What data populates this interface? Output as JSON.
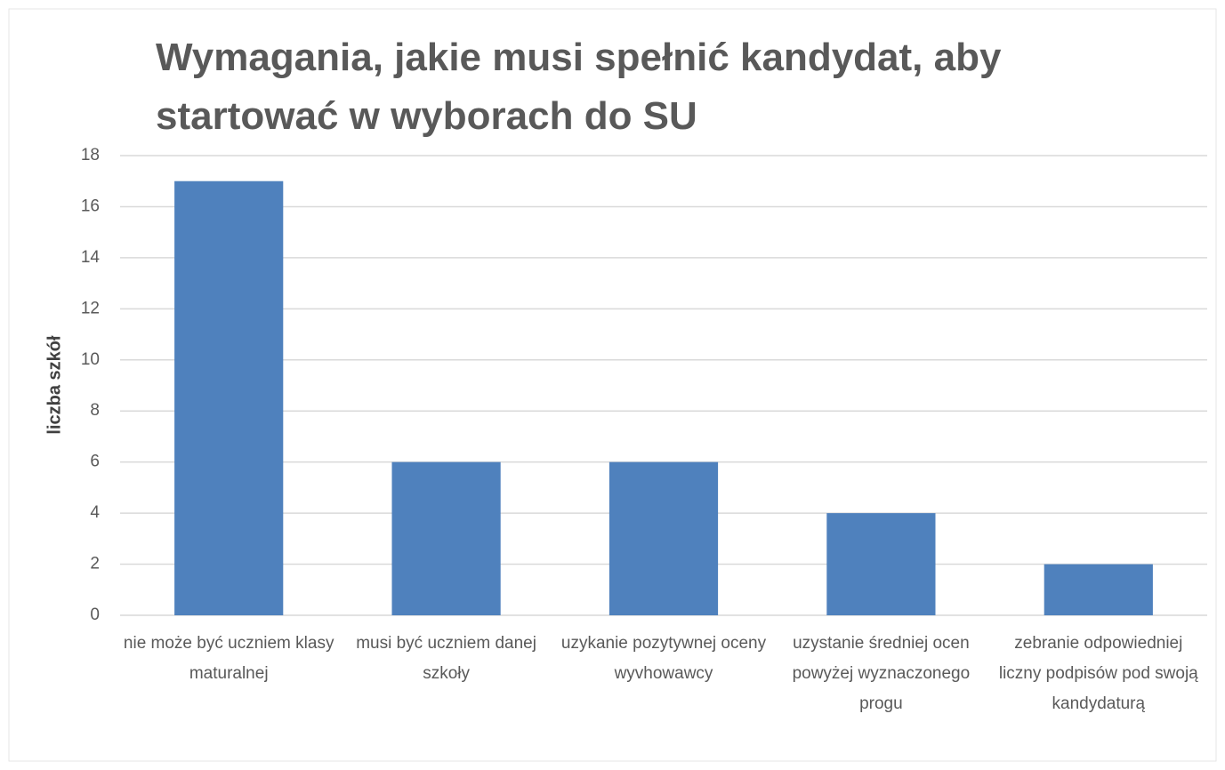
{
  "chart_data": {
    "type": "bar",
    "title": "Wymagania, jakie musi spełnić kandydat, aby startować w wyborach do SU",
    "y_label": "liczba szkół",
    "categories": [
      "nie może być uczniem klasy maturalnej",
      "musi być uczniem danej szkoły",
      "uzykanie pozytywnej oceny wyvhowawcy",
      "uzystanie średniej ocen powyżej wyznaczonego progu",
      "zebranie odpowiedniej liczny podpisów pod swoją kandydaturą"
    ],
    "values": [
      17,
      6,
      6,
      4,
      2
    ],
    "color": "#4f81bd",
    "ylim": [
      0,
      18
    ],
    "yticks": [
      0,
      2,
      4,
      6,
      8,
      10,
      12,
      14,
      16,
      18
    ],
    "grid": true
  }
}
